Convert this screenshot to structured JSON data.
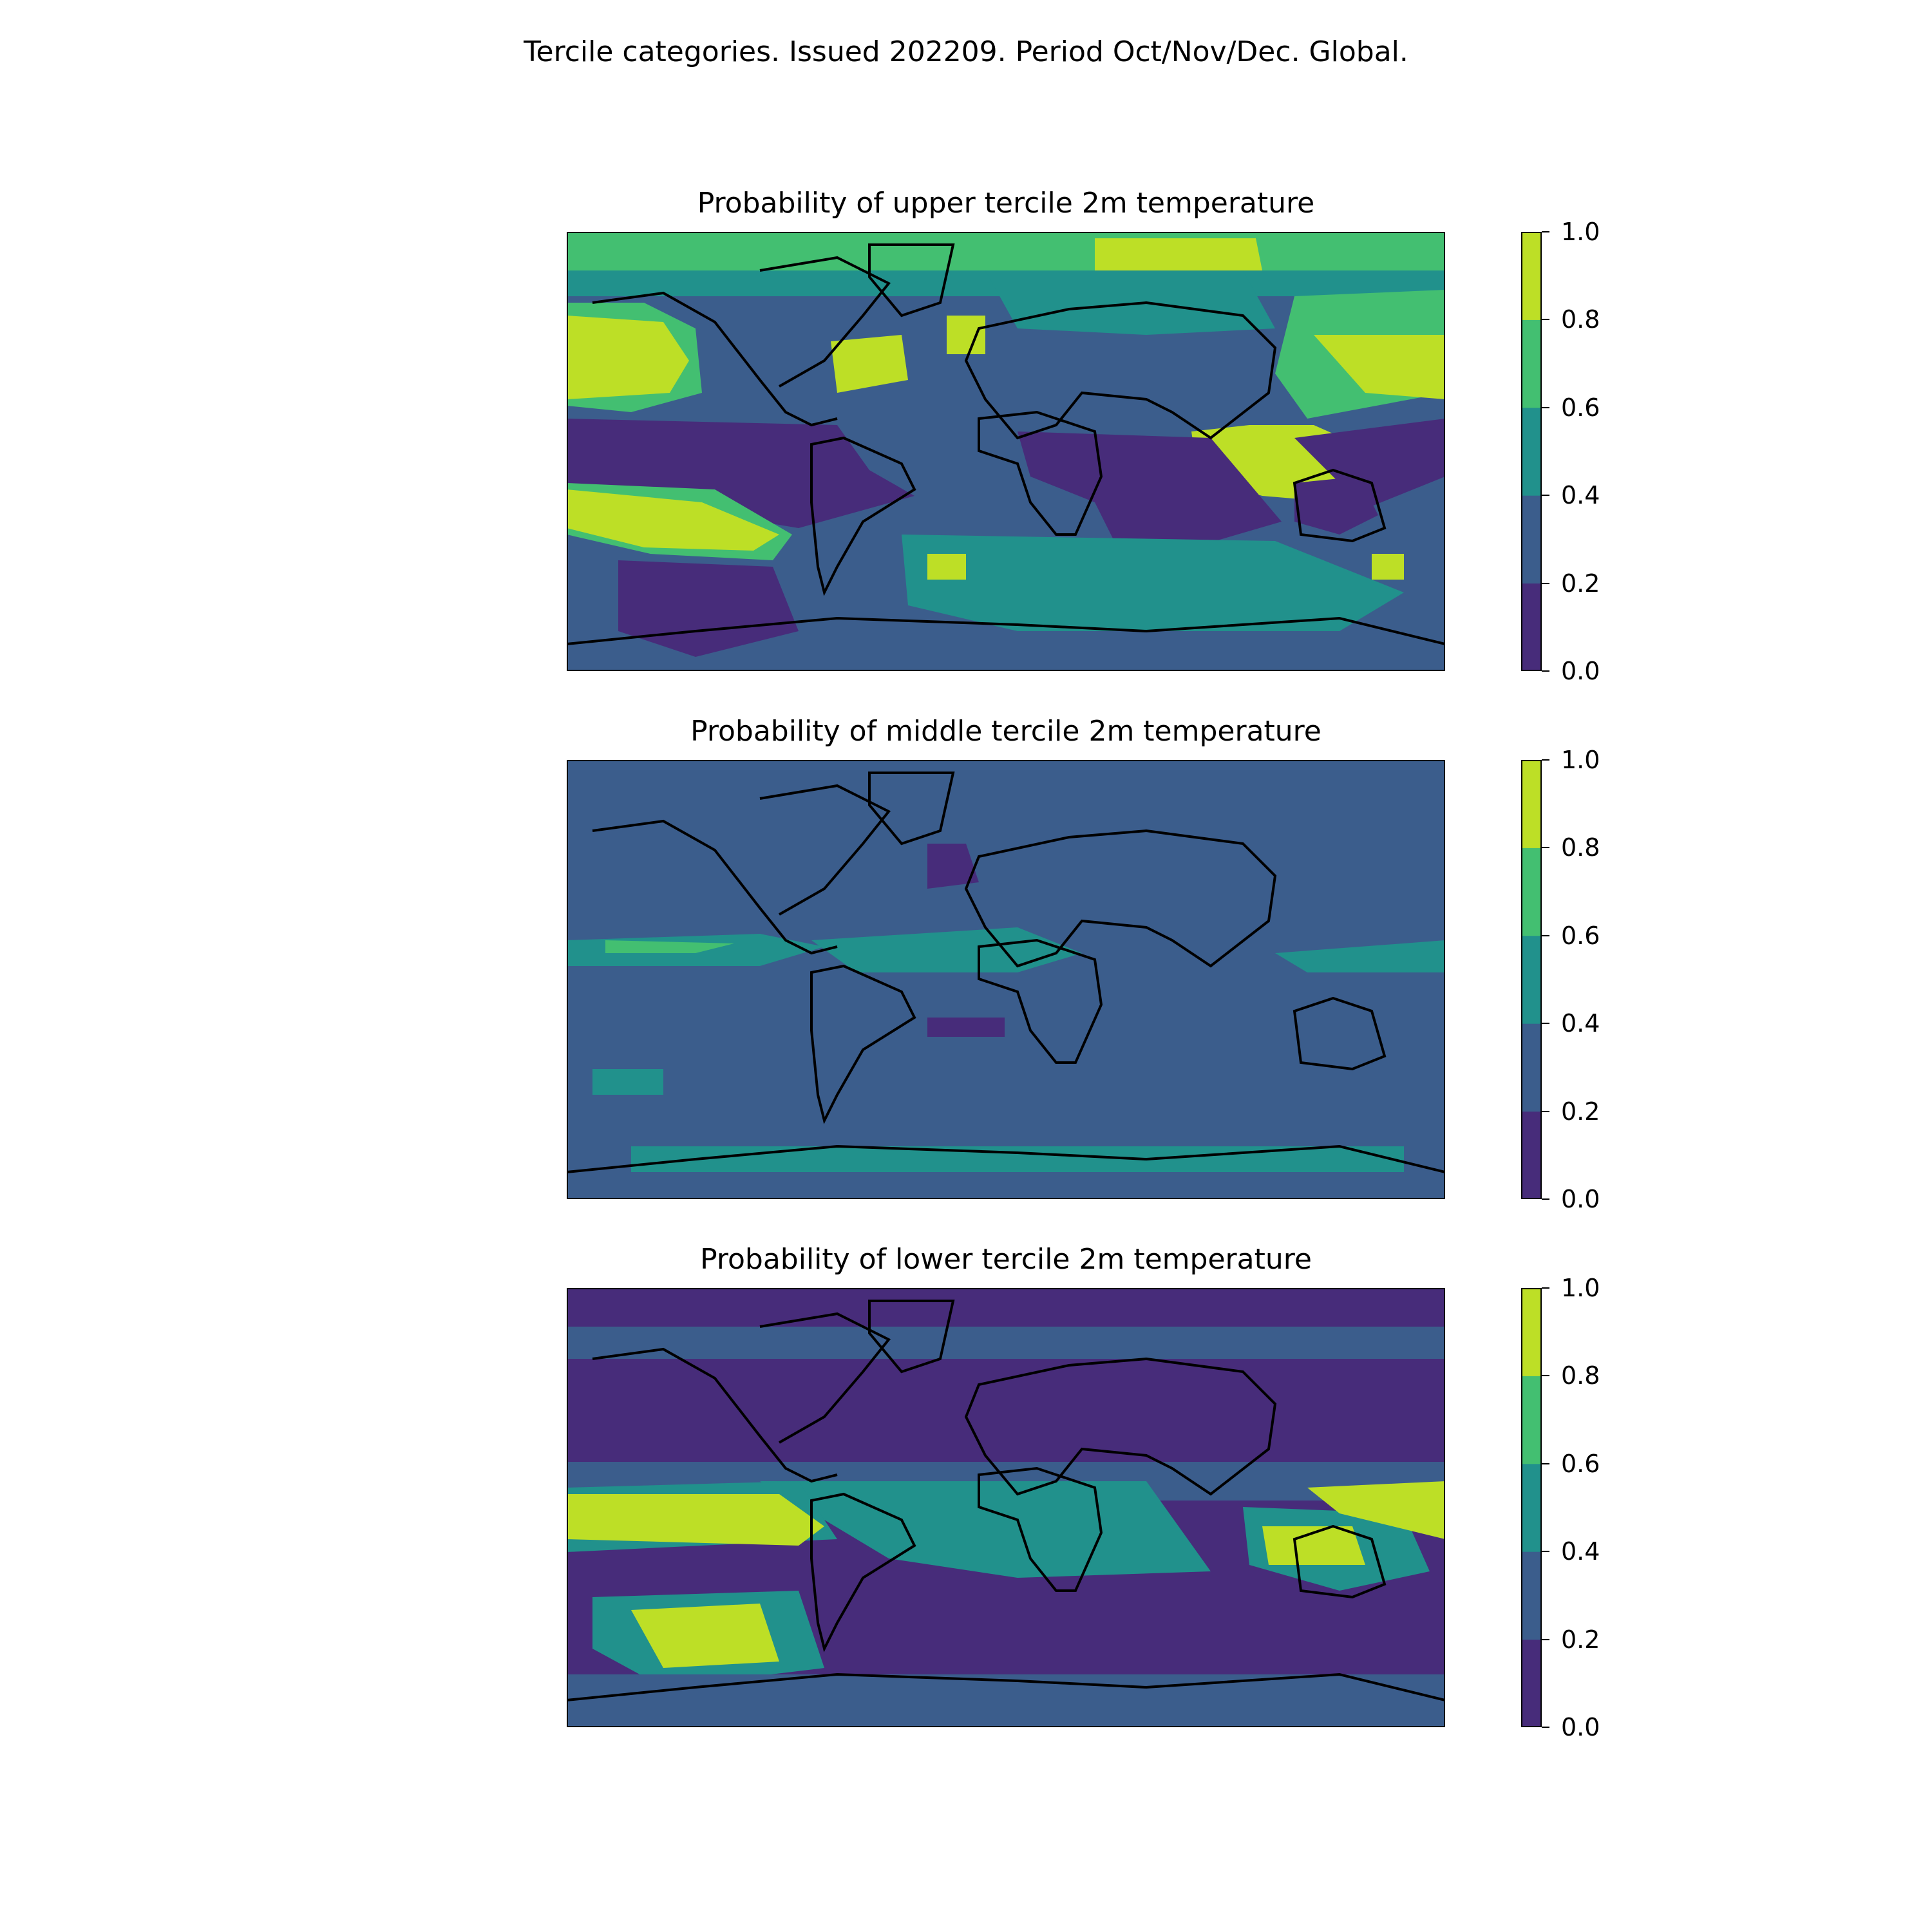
{
  "figure": {
    "suptitle": "Tercile categories. Issued 202209. Period Oct/Nov/Dec. Global."
  },
  "colorbar": {
    "levels": [
      0.0,
      0.2,
      0.4,
      0.6,
      0.8,
      1.0
    ],
    "tick_labels": [
      "0.0",
      "0.2",
      "0.4",
      "0.6",
      "0.8",
      "1.0"
    ],
    "colors": [
      "#472c7a",
      "#3b5d8c",
      "#21918c",
      "#43bf71",
      "#bddf26"
    ]
  },
  "panels": [
    {
      "title": "Probability of upper tercile 2m temperature"
    },
    {
      "title": "Probability of middle tercile 2m temperature"
    },
    {
      "title": "Probability of lower tercile 2m temperature"
    }
  ]
}
